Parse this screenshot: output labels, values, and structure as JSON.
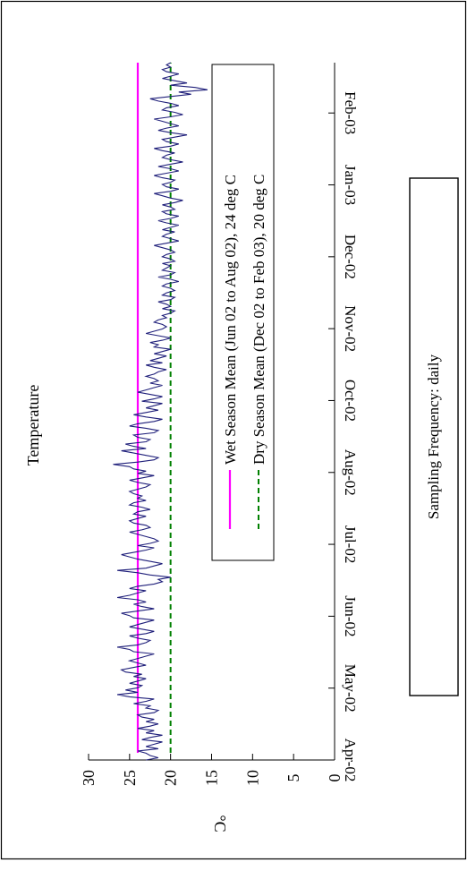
{
  "chart_data": {
    "type": "line",
    "title": "Temperature",
    "ylabel": "°C",
    "ylim": [
      0,
      30
    ],
    "yticks": [
      0,
      5,
      10,
      15,
      20,
      25,
      30
    ],
    "x_tick_labels": [
      "Apr-02",
      "May-02",
      "Jun-02",
      "Jul-02",
      "Aug-02",
      "Oct-02",
      "Nov-02",
      "Dec-02",
      "Jan-03",
      "Feb-03"
    ],
    "x_range": [
      "2002-04-01",
      "2003-03-01"
    ],
    "series": [
      {
        "name": "Temperature",
        "color": "#1f1f7a",
        "style": "solid",
        "sampling": "daily",
        "x_start": "2002-04-01",
        "values": [
          23,
          21.5,
          22.5,
          23,
          24,
          21.5,
          23,
          22,
          21,
          23.5,
          22.5,
          21,
          23,
          22,
          24,
          22.5,
          21.5,
          23,
          22,
          23.5,
          24,
          22,
          21.5,
          23,
          22.5,
          24.5,
          23,
          22,
          25,
          26.5,
          24,
          25.5,
          24,
          23.5,
          25,
          24,
          23,
          24.5,
          23.5,
          25.5,
          26,
          24.5,
          23,
          24,
          25,
          24,
          23,
          22,
          24.5,
          25,
          26.5,
          24,
          23,
          22.5,
          24,
          25,
          23,
          22,
          23.5,
          25,
          24,
          23,
          22,
          24.5,
          25,
          26,
          24,
          22,
          23.5,
          24.5,
          23,
          24,
          26.5,
          25,
          24,
          23,
          25,
          24,
          22,
          21,
          21.5,
          20,
          22.5,
          24,
          26.5,
          23,
          22,
          21,
          22.5,
          24,
          25,
          26,
          24.5,
          23,
          22,
          24,
          22.5,
          21.5,
          22,
          23,
          24,
          25,
          23.5,
          22.5,
          23,
          24.5,
          25,
          24,
          23,
          24.5,
          24,
          22.5,
          23.5,
          25,
          24.5,
          23,
          24,
          23.5,
          24.5,
          25,
          24,
          23,
          22.5,
          24,
          25,
          23.5,
          22,
          24,
          23,
          24.5,
          25,
          27,
          24,
          22,
          21.5,
          23,
          24.5,
          26,
          23,
          24.5,
          25.5,
          23,
          22.5,
          24,
          24.5,
          22,
          21.5,
          23,
          25,
          24,
          22,
          21,
          23,
          24.5,
          23,
          21.5,
          23,
          22,
          21,
          23.5,
          22,
          21,
          22.5,
          24,
          23,
          22,
          21,
          22.5,
          21.5,
          22,
          23,
          22,
          21.5,
          20.5,
          22,
          23,
          21,
          22.5,
          21.5,
          20.5,
          22,
          21,
          20,
          22,
          21.5,
          22.5,
          21,
          20,
          21.5,
          23,
          22,
          21,
          20.5,
          21,
          22,
          21.5,
          20.5,
          21,
          20,
          19.5,
          21,
          20,
          20.5,
          21.5,
          20,
          19.5,
          21,
          20.5,
          19.5,
          20,
          21,
          20.5,
          19,
          20,
          21.5,
          20,
          19.5,
          21,
          20.5,
          20,
          21,
          19.5,
          20,
          21,
          20.5,
          19.5,
          20,
          21,
          22,
          20.5,
          19,
          20,
          21,
          20.5,
          19.5,
          21,
          20,
          19,
          20.5,
          21.5,
          20,
          19,
          20.5,
          21,
          19.5,
          20,
          21,
          19.5,
          18.5,
          20,
          21,
          22,
          20,
          19,
          20.5,
          21,
          20,
          19.5,
          21,
          22,
          20.5,
          19,
          20,
          21.5,
          20,
          18.5,
          20,
          21,
          20.5,
          19.5,
          21,
          22,
          20,
          19,
          20.5,
          21,
          19.5,
          18,
          20,
          21.5,
          20.5,
          19,
          20,
          21,
          22,
          20,
          18.5,
          19.5,
          21,
          20.5,
          19,
          20,
          21.5,
          22.5,
          20,
          17.5,
          19,
          15.5,
          17,
          20,
          18,
          19.5,
          21,
          20,
          19,
          20.5,
          21,
          20,
          20.5,
          20
        ],
        "legend_box_color": "#000000"
      },
      {
        "name": "Wet Season Mean (Jun 02 to Aug 02), 24 deg C",
        "color": "#ff00ff",
        "style": "solid",
        "value": 24
      },
      {
        "name": "Dry Season Mean (Dec 02 to Feb 03), 20 deg C",
        "color": "#008000",
        "style": "dashed",
        "value": 20
      }
    ],
    "legend": "top-right",
    "grid": false,
    "annotation": "Sampling Frequency: daily",
    "orientation_note": "rotated 90 degrees"
  }
}
